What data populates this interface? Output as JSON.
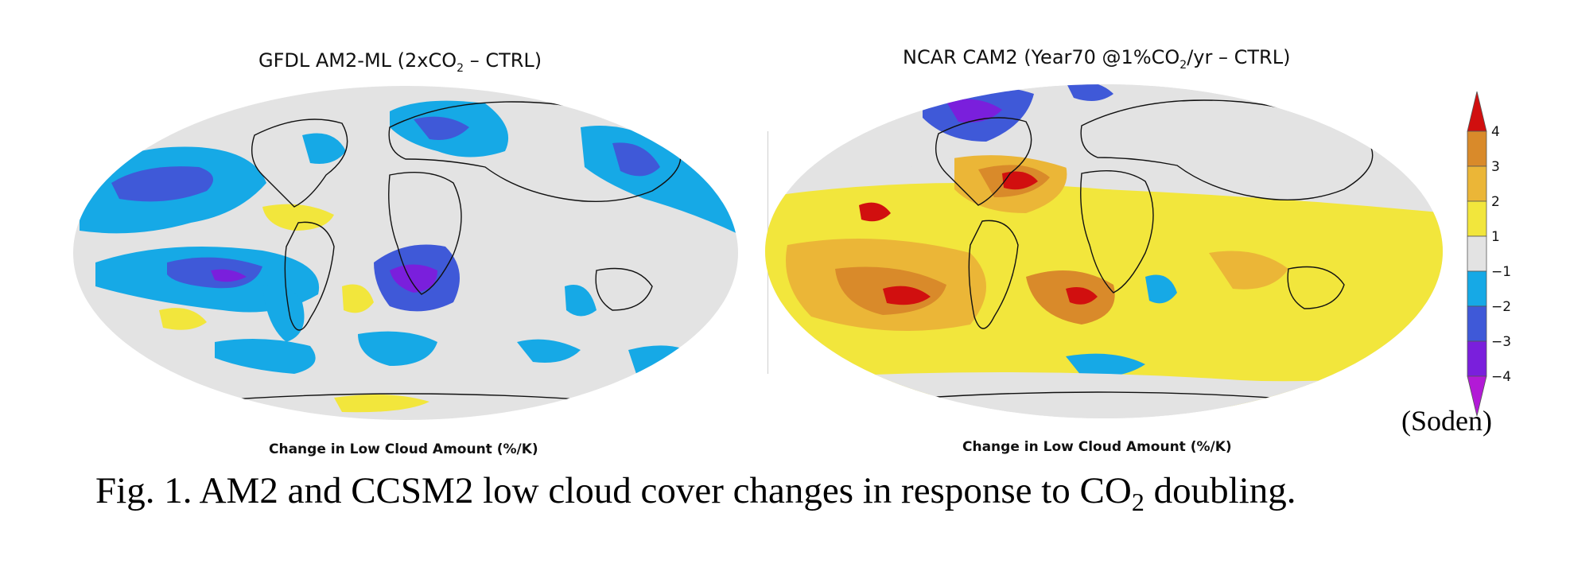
{
  "panels": [
    {
      "title_main": "GFDL AM2-ML (2xCO",
      "title_sub": "2",
      "title_end": " – CTRL)",
      "caption": "Change in Low Cloud Amount (%/K)"
    },
    {
      "title_main": "NCAR CAM2 (Year70 @1%CO",
      "title_sub": "2",
      "title_end": "/yr – CTRL)",
      "caption": "Change in Low Cloud Amount (%/K)"
    }
  ],
  "colorbar": {
    "labels": [
      "4",
      "3",
      "2",
      "1",
      "−1",
      "−2",
      "−3",
      "−4"
    ],
    "colors": {
      "c_pos4": "#d10f0f",
      "c_pos3": "#d98a2a",
      "c_pos2": "#ebb637",
      "c_pos1": "#f2e63c",
      "c_zero": "#e3e3e3",
      "c_neg1": "#16a9e6",
      "c_neg2": "#3f59d8",
      "c_neg3": "#7a1fdc",
      "c_neg4": "#b21ad6"
    }
  },
  "credit": "(Soden)",
  "figure_caption": {
    "prefix": "Fig. 1. AM2 and CCSM2 low cloud cover changes in response to CO",
    "sub": "2",
    "suffix": " doubling."
  }
}
